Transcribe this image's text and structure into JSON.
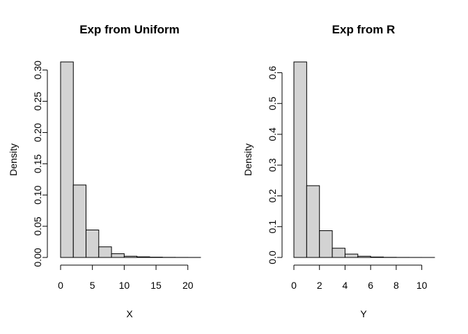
{
  "chart_data": [
    {
      "type": "bar",
      "title": "Exp from Uniform",
      "xlabel": "X",
      "ylabel": "Density",
      "bin_edges": [
        0,
        2,
        4,
        6,
        8,
        10,
        12,
        14,
        16,
        18,
        20,
        22
      ],
      "values": [
        0.313,
        0.116,
        0.044,
        0.017,
        0.006,
        0.002,
        0.001,
        0.0005,
        0.0002,
        0.0001,
        5e-05
      ],
      "xticks": [
        0,
        5,
        10,
        15,
        20
      ],
      "xtick_labels": [
        "0",
        "5",
        "10",
        "15",
        "20"
      ],
      "yticks": [
        0,
        0.05,
        0.1,
        0.15,
        0.2,
        0.25,
        0.3
      ],
      "ytick_labels": [
        "0.00",
        "0.05",
        "0.10",
        "0.15",
        "0.20",
        "0.25",
        "0.30"
      ],
      "xlim": [
        0,
        22
      ],
      "ylim": [
        0,
        0.313
      ]
    },
    {
      "type": "bar",
      "title": "Exp from R",
      "xlabel": "Y",
      "ylabel": "Density",
      "bin_edges": [
        0,
        1,
        2,
        3,
        4,
        5,
        6,
        7,
        8,
        9,
        10,
        11
      ],
      "values": [
        0.635,
        0.233,
        0.087,
        0.03,
        0.011,
        0.004,
        0.0015,
        0.0005,
        0.0002,
        0.0001,
        5e-05
      ],
      "xticks": [
        0,
        2,
        4,
        6,
        8,
        10
      ],
      "xtick_labels": [
        "0",
        "2",
        "4",
        "6",
        "8",
        "10"
      ],
      "yticks": [
        0,
        0.1,
        0.2,
        0.3,
        0.4,
        0.5,
        0.6
      ],
      "ytick_labels": [
        "0.0",
        "0.1",
        "0.2",
        "0.3",
        "0.4",
        "0.5",
        "0.6"
      ],
      "xlim": [
        0,
        11
      ],
      "ylim": [
        0,
        0.635
      ]
    }
  ]
}
